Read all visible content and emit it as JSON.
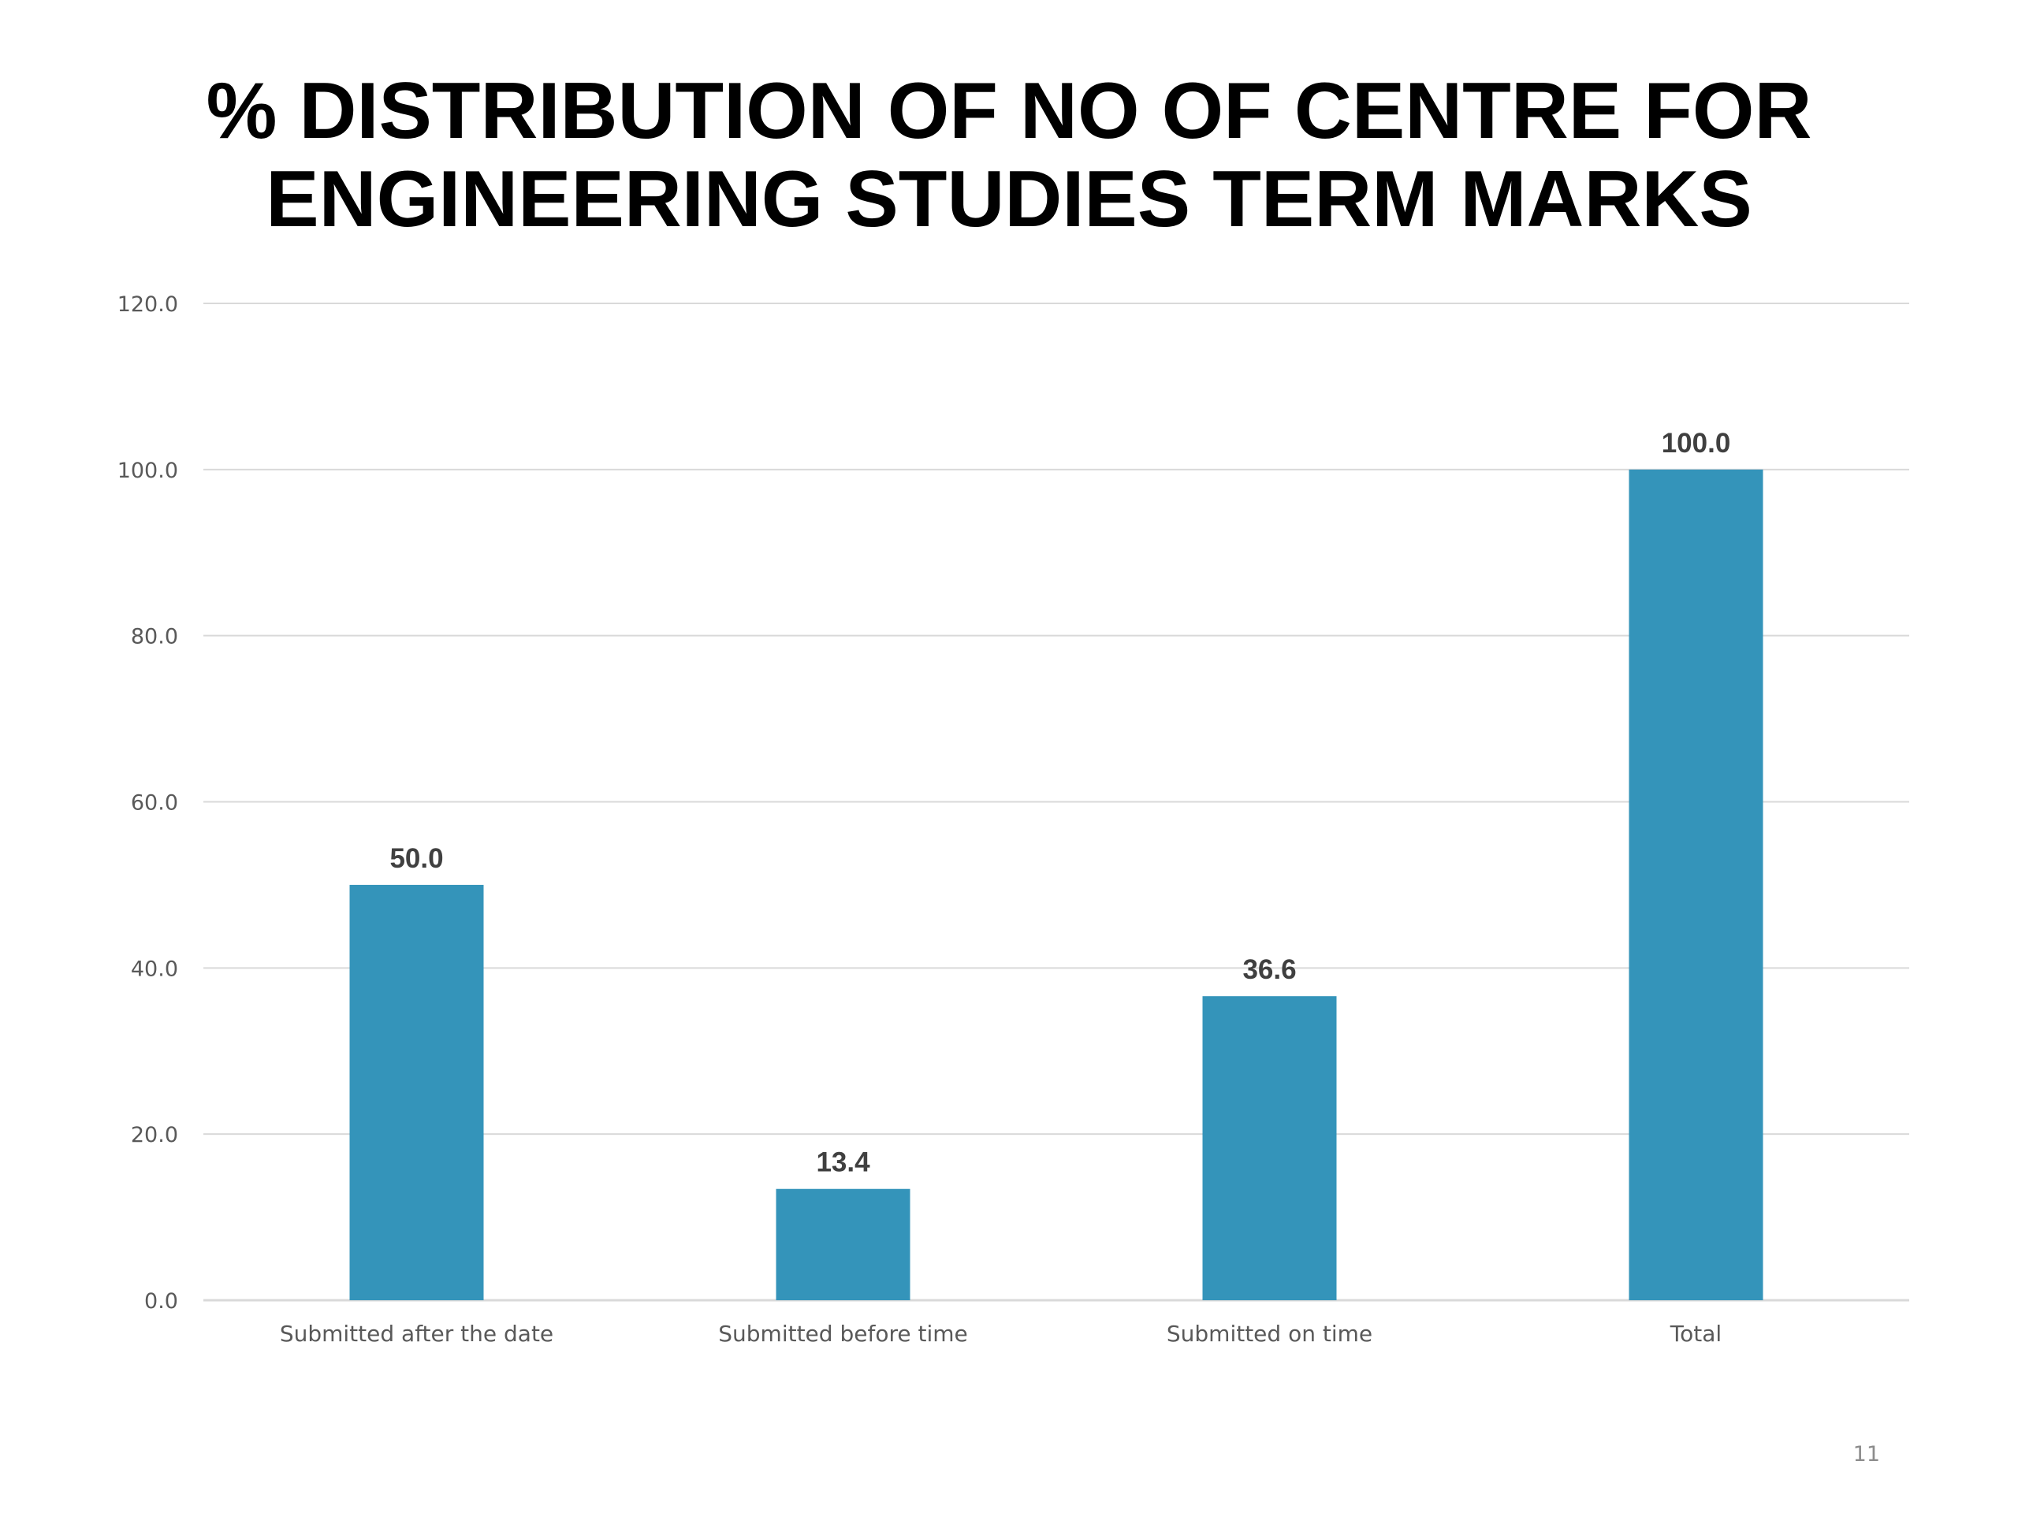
{
  "slide": {
    "title_lines": [
      "% DISTRIBUTION OF NO OF CENTRE FOR",
      "ENGINEERING STUDIES TERM MARKS"
    ],
    "page_number": "11"
  },
  "chart_data": {
    "type": "bar",
    "title": "% DISTRIBUTION OF NO OF CENTRE FOR ENGINEERING STUDIES TERM MARKS",
    "categories": [
      "Submitted after the date",
      "Submitted before time",
      "Submitted on time",
      "Total"
    ],
    "values": [
      50.0,
      13.4,
      36.6,
      100.0
    ],
    "data_labels": [
      "50.0",
      "13.4",
      "36.6",
      "100.0"
    ],
    "ylim": [
      0,
      120
    ],
    "yticks": [
      0,
      20,
      40,
      60,
      80,
      100,
      120
    ],
    "ytick_labels": [
      "0.0",
      "20.0",
      "40.0",
      "60.0",
      "80.0",
      "100.0",
      "120.0"
    ],
    "grid": true,
    "legend": "none",
    "colors": {
      "bar": "#3494BA",
      "grid": "#D9D9D9",
      "axis_text": "#595959",
      "data_label": "#404040"
    }
  }
}
